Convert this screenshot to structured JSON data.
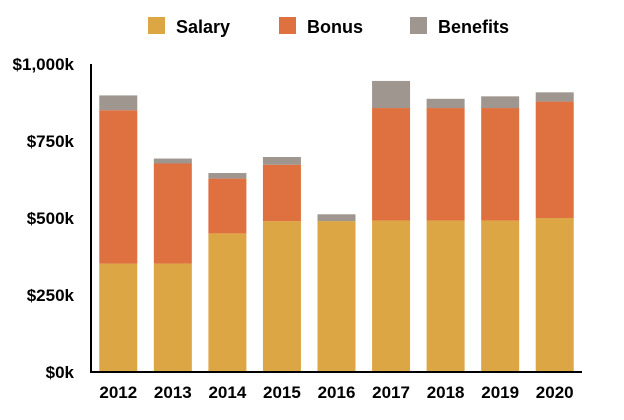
{
  "chart_data": {
    "type": "bar",
    "stacked": true,
    "categories": [
      "2012",
      "2013",
      "2014",
      "2015",
      "2016",
      "2017",
      "2018",
      "2019",
      "2020"
    ],
    "series": [
      {
        "name": "Salary",
        "color": "#DDA645",
        "values": [
          352,
          352,
          450,
          490,
          490,
          492,
          492,
          492,
          500
        ]
      },
      {
        "name": "Bonus",
        "color": "#DF7140",
        "values": [
          498,
          325,
          178,
          183,
          0,
          365,
          365,
          365,
          378
        ]
      },
      {
        "name": "Benefits",
        "color": "#9E968F",
        "values": [
          48,
          16,
          18,
          25,
          22,
          88,
          30,
          38,
          30
        ]
      }
    ],
    "y_ticks": [
      {
        "value": 0,
        "label": "$0k"
      },
      {
        "value": 250,
        "label": "$250k"
      },
      {
        "value": 500,
        "label": "$500k"
      },
      {
        "value": 750,
        "label": "$750k"
      },
      {
        "value": 1000,
        "label": "$1,000k"
      }
    ],
    "ylim": [
      0,
      1000
    ],
    "grid": false,
    "legend_position": "top",
    "axis_color": "#000000"
  }
}
